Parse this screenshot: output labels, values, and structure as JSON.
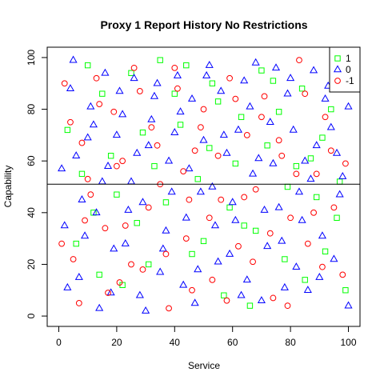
{
  "chart_data": {
    "type": "scatter",
    "title": "Proxy 1 Report History No Restrictions",
    "xlabel": "Service",
    "ylabel": "Capability",
    "xlim": [
      -4,
      104
    ],
    "ylim": [
      -4,
      104
    ],
    "x_ticks": [
      0,
      20,
      40,
      60,
      80,
      100
    ],
    "y_ticks": [
      0,
      20,
      40,
      60,
      80,
      100
    ],
    "grid": false,
    "legend_position": "top-right",
    "reference_line": {
      "type": "horizontal",
      "y": 51,
      "color": "#000000"
    },
    "series": [
      {
        "name": "1",
        "marker": "square",
        "color": "#00ff00",
        "points": [
          [
            3,
            72
          ],
          [
            12,
            40
          ],
          [
            25,
            94
          ],
          [
            33,
            58
          ],
          [
            40,
            86
          ],
          [
            46,
            24
          ],
          [
            52,
            65
          ],
          [
            57,
            8
          ],
          [
            63,
            77
          ],
          [
            68,
            33
          ],
          [
            74,
            91
          ],
          [
            79,
            50
          ],
          [
            85,
            14
          ],
          [
            91,
            69
          ],
          [
            96,
            38
          ],
          [
            8,
            55
          ],
          [
            15,
            86
          ],
          [
            22,
            12
          ],
          [
            29,
            71
          ],
          [
            37,
            44
          ],
          [
            44,
            97
          ],
          [
            50,
            29
          ],
          [
            55,
            83
          ],
          [
            61,
            59
          ],
          [
            66,
            4
          ],
          [
            72,
            66
          ],
          [
            78,
            22
          ],
          [
            84,
            88
          ],
          [
            89,
            46
          ],
          [
            94,
            80
          ],
          [
            99,
            10
          ],
          [
            6,
            28
          ],
          [
            18,
            62
          ],
          [
            27,
            36
          ],
          [
            35,
            99
          ],
          [
            48,
            53
          ],
          [
            59,
            42
          ],
          [
            70,
            95
          ],
          [
            82,
            58
          ],
          [
            92,
            25
          ],
          [
            10,
            97
          ],
          [
            20,
            47
          ],
          [
            31,
            20
          ],
          [
            42,
            74
          ],
          [
            53,
            90
          ],
          [
            64,
            35
          ],
          [
            76,
            79
          ],
          [
            87,
            61
          ],
          [
            97,
            52
          ],
          [
            14,
            16
          ]
        ]
      },
      {
        "name": "0",
        "marker": "triangle",
        "color": "#0000ff",
        "points": [
          [
            1,
            57
          ],
          [
            4,
            88
          ],
          [
            7,
            15
          ],
          [
            10,
            69
          ],
          [
            13,
            40
          ],
          [
            16,
            94
          ],
          [
            19,
            26
          ],
          [
            22,
            78
          ],
          [
            25,
            52
          ],
          [
            28,
            8
          ],
          [
            31,
            66
          ],
          [
            34,
            90
          ],
          [
            37,
            33
          ],
          [
            40,
            71
          ],
          [
            43,
            12
          ],
          [
            46,
            84
          ],
          [
            49,
            48
          ],
          [
            52,
            97
          ],
          [
            55,
            21
          ],
          [
            58,
            63
          ],
          [
            61,
            37
          ],
          [
            64,
            91
          ],
          [
            67,
            55
          ],
          [
            70,
            6
          ],
          [
            73,
            75
          ],
          [
            76,
            42
          ],
          [
            79,
            86
          ],
          [
            82,
            19
          ],
          [
            85,
            60
          ],
          [
            88,
            95
          ],
          [
            91,
            31
          ],
          [
            94,
            73
          ],
          [
            97,
            47
          ],
          [
            100,
            81
          ],
          [
            2,
            35
          ],
          [
            5,
            99
          ],
          [
            8,
            45
          ],
          [
            11,
            81
          ],
          [
            14,
            3
          ],
          [
            17,
            58
          ],
          [
            20,
            70
          ],
          [
            23,
            28
          ],
          [
            26,
            92
          ],
          [
            29,
            44
          ],
          [
            32,
            76
          ],
          [
            35,
            17
          ],
          [
            38,
            60
          ],
          [
            41,
            93
          ],
          [
            44,
            38
          ],
          [
            47,
            5
          ],
          [
            50,
            68
          ],
          [
            53,
            50
          ],
          [
            56,
            87
          ],
          [
            59,
            24
          ],
          [
            62,
            72
          ],
          [
            65,
            14
          ],
          [
            68,
            98
          ],
          [
            71,
            41
          ],
          [
            74,
            59
          ],
          [
            77,
            29
          ],
          [
            80,
            92
          ],
          [
            83,
            48
          ],
          [
            86,
            10
          ],
          [
            89,
            66
          ],
          [
            92,
            84
          ],
          [
            95,
            22
          ],
          [
            98,
            54
          ],
          [
            100,
            4
          ],
          [
            3,
            11
          ],
          [
            6,
            62
          ],
          [
            9,
            31
          ],
          [
            12,
            74
          ],
          [
            15,
            52
          ],
          [
            18,
            9
          ],
          [
            21,
            87
          ],
          [
            24,
            41
          ],
          [
            27,
            63
          ],
          [
            30,
            2
          ],
          [
            33,
            85
          ],
          [
            36,
            26
          ],
          [
            39,
            48
          ],
          [
            42,
            79
          ],
          [
            45,
            57
          ],
          [
            48,
            18
          ],
          [
            51,
            93
          ],
          [
            54,
            35
          ],
          [
            57,
            70
          ],
          [
            60,
            44
          ],
          [
            63,
            8
          ],
          [
            66,
            81
          ],
          [
            69,
            61
          ],
          [
            72,
            27
          ],
          [
            75,
            96
          ],
          [
            78,
            11
          ],
          [
            81,
            72
          ],
          [
            84,
            37
          ],
          [
            87,
            53
          ],
          [
            90,
            15
          ],
          [
            93,
            89
          ],
          [
            96,
            63
          ]
        ]
      },
      {
        "name": "-1",
        "marker": "circle",
        "color": "#ff0000",
        "points": [
          [
            2,
            90
          ],
          [
            5,
            22
          ],
          [
            8,
            67
          ],
          [
            11,
            47
          ],
          [
            14,
            82
          ],
          [
            17,
            9
          ],
          [
            20,
            58
          ],
          [
            23,
            35
          ],
          [
            26,
            96
          ],
          [
            29,
            18
          ],
          [
            32,
            73
          ],
          [
            35,
            51
          ],
          [
            38,
            3
          ],
          [
            41,
            88
          ],
          [
            44,
            30
          ],
          [
            47,
            64
          ],
          [
            50,
            80
          ],
          [
            53,
            14
          ],
          [
            56,
            45
          ],
          [
            59,
            92
          ],
          [
            62,
            27
          ],
          [
            65,
            70
          ],
          [
            68,
            49
          ],
          [
            71,
            85
          ],
          [
            74,
            7
          ],
          [
            77,
            62
          ],
          [
            80,
            38
          ],
          [
            83,
            99
          ],
          [
            86,
            28
          ],
          [
            89,
            55
          ],
          [
            92,
            77
          ],
          [
            95,
            42
          ],
          [
            98,
            16
          ],
          [
            1,
            28
          ],
          [
            4,
            75
          ],
          [
            7,
            5
          ],
          [
            10,
            53
          ],
          [
            13,
            92
          ],
          [
            16,
            34
          ],
          [
            19,
            79
          ],
          [
            22,
            60
          ],
          [
            25,
            20
          ],
          [
            28,
            87
          ],
          [
            31,
            42
          ],
          [
            34,
            66
          ],
          [
            37,
            24
          ],
          [
            40,
            96
          ],
          [
            43,
            56
          ],
          [
            46,
            10
          ],
          [
            49,
            73
          ],
          [
            52,
            38
          ],
          [
            55,
            62
          ],
          [
            58,
            6
          ],
          [
            61,
            84
          ],
          [
            64,
            46
          ],
          [
            67,
            21
          ],
          [
            70,
            77
          ],
          [
            73,
            32
          ],
          [
            76,
            68
          ],
          [
            79,
            4
          ],
          [
            82,
            55
          ],
          [
            85,
            86
          ],
          [
            88,
            40
          ],
          [
            91,
            19
          ],
          [
            94,
            64
          ],
          [
            97,
            94
          ],
          [
            99,
            59
          ],
          [
            9,
            37
          ],
          [
            21,
            13
          ],
          [
            45,
            45
          ]
        ]
      }
    ]
  }
}
